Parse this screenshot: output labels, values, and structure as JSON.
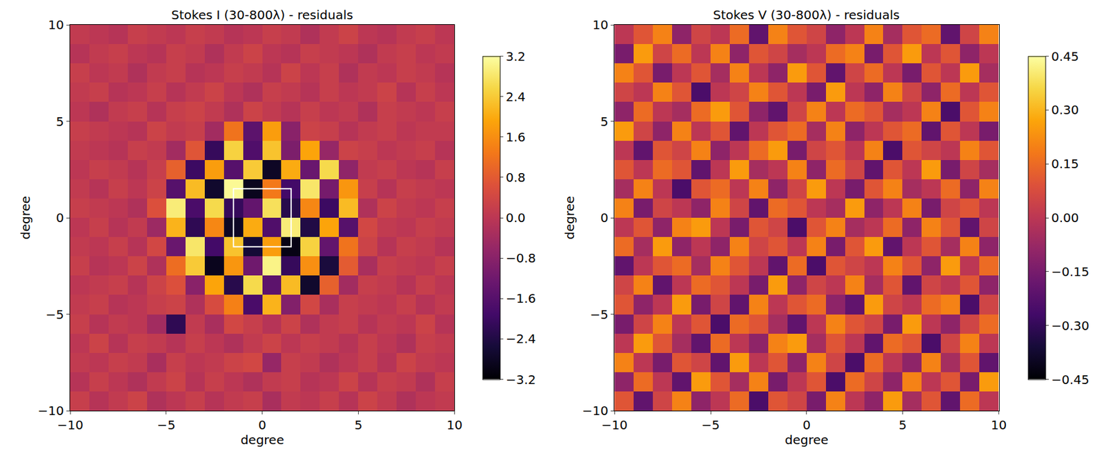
{
  "chart_data": [
    {
      "type": "heatmap",
      "title": "Stokes I (30-800λ) - residuals",
      "x_label": "degree",
      "y_label": "degree",
      "x": [
        -9.5,
        -8.5,
        -7.5,
        -6.5,
        -5.5,
        -4.5,
        -3.5,
        -2.5,
        -1.5,
        -0.5,
        0.5,
        1.5,
        2.5,
        3.5,
        4.5,
        5.5,
        6.5,
        7.5,
        8.5,
        9.5
      ],
      "y": [
        -9.5,
        -8.5,
        -7.5,
        -6.5,
        -5.5,
        -4.5,
        -3.5,
        -2.5,
        -1.5,
        -0.5,
        0.5,
        1.5,
        2.5,
        3.5,
        4.5,
        5.5,
        6.5,
        7.5,
        8.5,
        9.5
      ],
      "z": [
        [
          0.2,
          -0.1,
          0.1,
          0.3,
          -0.2,
          0.0,
          0.2,
          -0.1,
          0.1,
          0.2,
          -0.3,
          0.1,
          0.0,
          0.2,
          -0.1,
          0.3,
          0.1,
          -0.2,
          0.0,
          0.1
        ],
        [
          -0.1,
          0.2,
          0.0,
          -0.2,
          0.1,
          0.3,
          -0.1,
          0.2,
          0.0,
          -0.2,
          0.1,
          0.2,
          -0.1,
          0.0,
          0.3,
          -0.1,
          0.2,
          0.1,
          -0.2,
          0.2
        ],
        [
          0.1,
          0.0,
          0.2,
          0.1,
          -0.3,
          0.2,
          0.0,
          0.1,
          0.3,
          0.4,
          -0.6,
          0.2,
          0.1,
          -0.2,
          0.0,
          0.2,
          -0.1,
          0.3,
          0.1,
          0.0
        ],
        [
          0.0,
          0.3,
          -0.1,
          0.2,
          0.1,
          -0.1,
          0.2,
          0.0,
          -0.2,
          0.1,
          0.3,
          0.0,
          0.2,
          0.1,
          -0.1,
          0.2,
          0.0,
          -0.2,
          0.2,
          0.1
        ],
        [
          0.2,
          -0.1,
          0.1,
          0.0,
          -0.4,
          -2.2,
          0.1,
          -0.3,
          0.4,
          0.2,
          -0.1,
          0.3,
          -0.2,
          0.1,
          0.2,
          -0.1,
          0.1,
          0.0,
          0.3,
          -0.1
        ],
        [
          0.1,
          0.2,
          -0.1,
          0.0,
          0.2,
          0.3,
          -0.2,
          0.5,
          1.4,
          -1.8,
          2.1,
          -0.9,
          0.4,
          -0.3,
          0.2,
          0.1,
          0.0,
          0.2,
          -0.1,
          0.1
        ],
        [
          0.0,
          0.1,
          0.2,
          -0.1,
          0.3,
          0.6,
          -0.8,
          1.9,
          -2.3,
          2.6,
          -1.5,
          2.2,
          -2.7,
          0.9,
          -0.4,
          0.2,
          0.1,
          -0.1,
          0.2,
          0.0
        ],
        [
          0.2,
          -0.1,
          0.0,
          0.3,
          -0.2,
          1.1,
          2.4,
          -2.9,
          1.7,
          -1.2,
          3.0,
          -2.1,
          1.6,
          -2.5,
          0.8,
          -0.3,
          0.2,
          0.1,
          0.0,
          0.2
        ],
        [
          0.1,
          0.0,
          0.2,
          -0.1,
          0.4,
          -1.3,
          2.8,
          -1.9,
          2.3,
          -2.6,
          1.8,
          -3.0,
          2.5,
          -1.4,
          1.2,
          0.3,
          -0.1,
          0.2,
          0.1,
          -0.1
        ],
        [
          0.0,
          0.2,
          -0.1,
          0.1,
          -0.5,
          2.1,
          -2.2,
          1.5,
          -2.8,
          2.0,
          -1.7,
          2.9,
          -2.4,
          1.9,
          -1.6,
          0.4,
          0.1,
          0.0,
          0.2,
          0.1
        ],
        [
          0.2,
          0.1,
          0.0,
          -0.2,
          0.6,
          2.9,
          -1.8,
          2.6,
          -2.1,
          -1.4,
          2.7,
          -2.3,
          1.5,
          -2.0,
          2.2,
          -0.2,
          0.3,
          0.1,
          0.0,
          0.2
        ],
        [
          0.1,
          -0.1,
          0.2,
          0.0,
          0.3,
          -1.6,
          2.2,
          -2.7,
          3.1,
          -2.9,
          1.3,
          -1.9,
          2.8,
          -1.1,
          1.7,
          0.2,
          -0.1,
          0.2,
          0.1,
          0.0
        ],
        [
          0.0,
          0.2,
          0.1,
          -0.1,
          0.2,
          0.9,
          -2.0,
          1.8,
          -1.6,
          2.4,
          -2.8,
          2.0,
          -1.3,
          2.6,
          -0.7,
          0.1,
          0.2,
          0.0,
          -0.1,
          0.2
        ],
        [
          0.1,
          0.0,
          -0.1,
          0.2,
          0.1,
          -0.4,
          0.7,
          -2.1,
          2.5,
          -1.7,
          2.3,
          -1.0,
          1.9,
          -0.6,
          0.3,
          0.2,
          0.0,
          0.1,
          0.2,
          -0.1
        ],
        [
          0.2,
          0.1,
          0.0,
          -0.1,
          0.3,
          0.1,
          0.2,
          -0.4,
          1.2,
          -1.5,
          1.8,
          -0.8,
          0.3,
          0.2,
          -0.1,
          0.1,
          0.2,
          0.0,
          0.1,
          0.1
        ],
        [
          0.0,
          -0.2,
          0.1,
          0.2,
          -0.1,
          0.2,
          0.3,
          0.1,
          -0.2,
          0.3,
          0.1,
          -0.1,
          0.2,
          0.0,
          0.1,
          -0.2,
          0.2,
          0.1,
          0.0,
          0.2
        ],
        [
          0.1,
          0.2,
          -0.1,
          0.0,
          0.2,
          -0.1,
          0.1,
          0.3,
          0.0,
          -0.2,
          0.2,
          0.1,
          -0.1,
          0.2,
          0.0,
          0.1,
          0.3,
          -0.1,
          0.2,
          0.0
        ],
        [
          0.2,
          0.0,
          0.1,
          -0.2,
          0.1,
          0.2,
          -0.1,
          0.0,
          0.2,
          0.1,
          -0.1,
          0.3,
          0.0,
          0.2,
          -0.2,
          0.1,
          0.0,
          0.2,
          0.1,
          -0.1
        ],
        [
          -0.1,
          0.1,
          0.2,
          0.0,
          -0.1,
          0.2,
          0.1,
          -0.2,
          0.1,
          0.3,
          0.0,
          -0.1,
          0.2,
          0.1,
          0.0,
          -0.2,
          0.1,
          0.2,
          0.0,
          0.1
        ],
        [
          0.1,
          0.0,
          -0.1,
          0.2,
          0.1,
          0.0,
          0.2,
          0.1,
          -0.1,
          0.0,
          0.2,
          0.1,
          -0.2,
          0.1,
          0.3,
          0.0,
          -0.1,
          0.1,
          0.2,
          0.0
        ]
      ],
      "xlim": [
        -10,
        10
      ],
      "ylim": [
        -10,
        10
      ],
      "xticks": [
        {
          "value": -10,
          "label": "−10"
        },
        {
          "value": -5,
          "label": "−5"
        },
        0,
        5,
        10
      ],
      "yticks": [
        {
          "value": -10,
          "label": "−10"
        },
        {
          "value": -5,
          "label": "−5"
        },
        0,
        5,
        10
      ],
      "colorbar_range": [
        -3.2,
        3.2
      ],
      "colorbar_ticks": [
        {
          "value": -3.2,
          "label": "−3.2"
        },
        {
          "value": -2.4,
          "label": "−2.4"
        },
        {
          "value": -1.6,
          "label": "−1.6"
        },
        {
          "value": -0.8,
          "label": "−0.8"
        },
        {
          "value": 0,
          "label": "0.0"
        },
        0.8,
        1.6,
        2.4,
        3.2
      ],
      "box": {
        "x": [
          -1.5,
          1.5
        ],
        "y": [
          -1.5,
          1.5
        ]
      }
    },
    {
      "type": "heatmap",
      "title": "Stokes V (30-800λ) - residuals",
      "x_label": "degree",
      "y_label": "degree",
      "x": [
        -9.5,
        -8.5,
        -7.5,
        -6.5,
        -5.5,
        -4.5,
        -3.5,
        -2.5,
        -1.5,
        -0.5,
        0.5,
        1.5,
        2.5,
        3.5,
        4.5,
        5.5,
        6.5,
        7.5,
        8.5,
        9.5
      ],
      "y": [
        -9.5,
        -8.5,
        -7.5,
        -6.5,
        -5.5,
        -4.5,
        -3.5,
        -2.5,
        -1.5,
        -0.5,
        0.5,
        1.5,
        2.5,
        3.5,
        4.5,
        5.5,
        6.5,
        7.5,
        8.5,
        9.5
      ],
      "z": [
        [
          0.1,
          -0.2,
          0.05,
          0.2,
          -0.1,
          0.0,
          0.15,
          -0.25,
          0.1,
          0.05,
          -0.15,
          0.2,
          0.0,
          -0.1,
          0.25,
          -0.05,
          0.1,
          -0.2,
          0.15,
          0.0
        ],
        [
          -0.1,
          0.15,
          0.0,
          -0.2,
          0.25,
          0.1,
          -0.05,
          0.2,
          -0.15,
          0.0,
          0.1,
          -0.25,
          0.15,
          0.05,
          -0.1,
          0.2,
          0.0,
          0.1,
          -0.15,
          0.25
        ],
        [
          0.2,
          0.0,
          -0.15,
          0.1,
          0.05,
          -0.2,
          0.25,
          0.0,
          0.1,
          -0.1,
          0.2,
          0.05,
          -0.25,
          0.15,
          0.0,
          -0.1,
          0.2,
          -0.05,
          0.1,
          -0.2
        ],
        [
          0.0,
          0.25,
          0.1,
          -0.05,
          -0.2,
          0.15,
          0.0,
          -0.1,
          0.2,
          0.25,
          -0.05,
          0.1,
          0.0,
          -0.2,
          0.15,
          0.1,
          -0.25,
          0.05,
          0.2,
          0.0
        ],
        [
          -0.15,
          0.05,
          0.2,
          0.0,
          0.1,
          -0.25,
          0.15,
          0.1,
          -0.05,
          -0.2,
          0.0,
          0.2,
          0.1,
          0.05,
          -0.15,
          0.25,
          0.0,
          -0.1,
          0.05,
          0.15
        ],
        [
          0.1,
          -0.1,
          0.0,
          0.25,
          -0.15,
          0.05,
          -0.2,
          0.2,
          0.0,
          0.1,
          0.15,
          -0.1,
          -0.2,
          0.25,
          0.05,
          0.0,
          0.15,
          0.2,
          -0.25,
          0.05
        ],
        [
          0.05,
          0.2,
          -0.2,
          0.0,
          0.15,
          0.1,
          0.0,
          -0.15,
          0.25,
          -0.1,
          0.05,
          0.0,
          0.2,
          -0.05,
          0.1,
          -0.2,
          0.05,
          0.0,
          0.1,
          -0.1
        ],
        [
          -0.2,
          0.0,
          0.1,
          0.15,
          -0.05,
          0.2,
          0.1,
          0.0,
          -0.2,
          0.15,
          -0.25,
          0.1,
          0.05,
          0.0,
          0.2,
          0.1,
          -0.1,
          0.25,
          0.0,
          0.15
        ],
        [
          0.15,
          -0.05,
          0.25,
          -0.1,
          0.0,
          -0.1,
          0.2,
          0.05,
          0.1,
          0.0,
          0.2,
          -0.15,
          0.1,
          0.25,
          -0.2,
          0.0,
          0.1,
          -0.05,
          0.2,
          -0.1
        ],
        [
          0.0,
          0.1,
          -0.1,
          0.2,
          0.25,
          0.0,
          -0.15,
          0.1,
          0.05,
          -0.25,
          0.1,
          0.2,
          -0.05,
          0.0,
          0.15,
          -0.1,
          0.2,
          0.1,
          -0.2,
          0.05
        ],
        [
          0.2,
          -0.15,
          0.05,
          0.0,
          -0.1,
          0.2,
          0.05,
          -0.2,
          0.15,
          0.1,
          0.0,
          -0.05,
          0.25,
          -0.1,
          0.0,
          0.2,
          -0.15,
          0.05,
          0.1,
          0.0
        ],
        [
          -0.05,
          0.2,
          0.0,
          -0.25,
          0.1,
          0.15,
          0.0,
          0.2,
          -0.1,
          0.05,
          0.25,
          0.0,
          -0.15,
          0.1,
          0.2,
          -0.05,
          0.0,
          0.15,
          -0.1,
          0.2
        ],
        [
          0.1,
          0.0,
          0.15,
          0.1,
          -0.2,
          0.0,
          0.25,
          -0.05,
          0.0,
          0.2,
          -0.1,
          0.15,
          0.05,
          -0.2,
          0.1,
          0.0,
          0.25,
          -0.15,
          0.05,
          -0.05
        ],
        [
          0.0,
          -0.2,
          0.1,
          0.05,
          0.2,
          -0.1,
          0.0,
          0.15,
          0.25,
          -0.15,
          0.05,
          0.1,
          0.0,
          0.2,
          -0.25,
          0.1,
          0.05,
          0.0,
          0.2,
          0.1
        ],
        [
          0.25,
          0.05,
          -0.1,
          0.2,
          0.0,
          0.1,
          -0.2,
          0.0,
          0.1,
          0.15,
          -0.05,
          0.2,
          -0.1,
          0.0,
          0.1,
          0.15,
          -0.2,
          0.1,
          0.0,
          -0.15
        ],
        [
          -0.1,
          0.15,
          0.0,
          -0.05,
          0.15,
          0.25,
          0.1,
          -0.1,
          -0.2,
          0.05,
          0.2,
          0.0,
          0.15,
          0.1,
          -0.05,
          0.0,
          0.2,
          -0.25,
          0.1,
          0.2
        ],
        [
          0.05,
          0.0,
          0.2,
          0.1,
          -0.25,
          0.0,
          0.05,
          0.2,
          0.1,
          0.0,
          -0.15,
          0.25,
          0.0,
          -0.1,
          0.2,
          0.05,
          -0.1,
          0.15,
          0.0,
          0.1
        ],
        [
          0.2,
          0.1,
          -0.15,
          0.0,
          0.1,
          -0.05,
          0.2,
          0.0,
          -0.1,
          0.25,
          0.1,
          -0.2,
          0.05,
          0.15,
          0.0,
          -0.15,
          0.1,
          0.0,
          0.25,
          -0.05
        ],
        [
          -0.15,
          0.25,
          0.05,
          0.15,
          0.0,
          0.2,
          -0.1,
          0.1,
          0.05,
          -0.05,
          0.0,
          0.15,
          0.2,
          -0.15,
          0.1,
          0.25,
          0.0,
          0.1,
          -0.1,
          0.0
        ],
        [
          0.0,
          0.1,
          0.2,
          -0.1,
          0.05,
          0.0,
          0.15,
          -0.2,
          0.2,
          0.1,
          0.05,
          -0.1,
          0.0,
          0.2,
          -0.05,
          0.1,
          0.15,
          -0.2,
          0.05,
          0.2
        ]
      ],
      "xlim": [
        -10,
        10
      ],
      "ylim": [
        -10,
        10
      ],
      "xticks": [
        {
          "value": -10,
          "label": "−10"
        },
        {
          "value": -5,
          "label": "−5"
        },
        0,
        5,
        10
      ],
      "yticks": [
        {
          "value": -10,
          "label": "−10"
        },
        {
          "value": -5,
          "label": "−5"
        },
        0,
        5,
        10
      ],
      "colorbar_range": [
        -0.45,
        0.45
      ],
      "colorbar_ticks": [
        {
          "value": -0.45,
          "label": "−0.45"
        },
        {
          "value": -0.3,
          "label": "−0.30"
        },
        {
          "value": -0.15,
          "label": "−0.15"
        },
        {
          "value": 0,
          "label": "0.00"
        },
        0.15,
        {
          "value": 0.3,
          "label": "0.30"
        },
        0.45
      ]
    }
  ]
}
